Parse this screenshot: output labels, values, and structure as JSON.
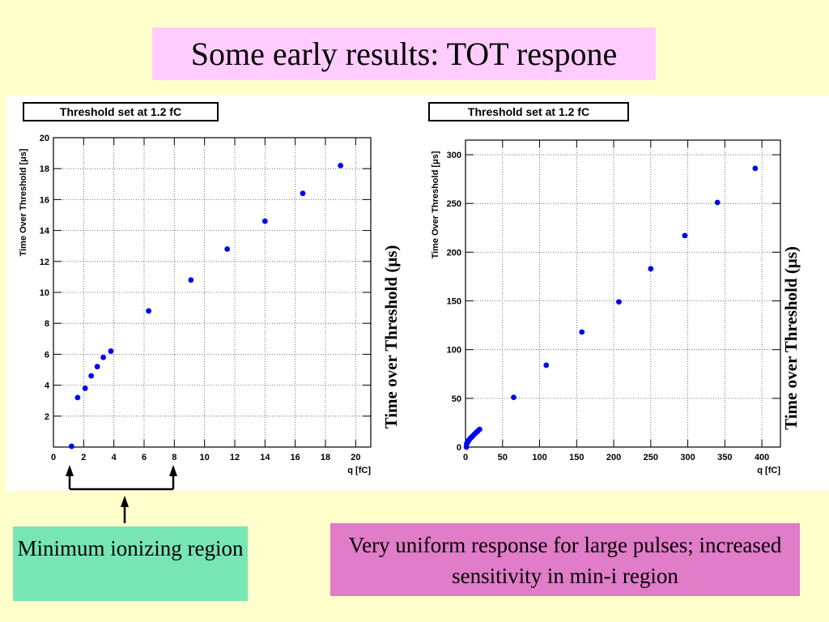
{
  "slide": {
    "title": "Some early results: TOT respone",
    "caption_left": "Minimum ionizing region",
    "caption_right": "Very uniform response for large pulses; increased sensitivity in min-i region",
    "colors": {
      "background": "#ffffcc",
      "title_bg": "#ffccff",
      "caption_left_bg": "#77e6b4",
      "caption_right_bg": "#e07cc8",
      "marker": "#0000ee"
    }
  },
  "chart_data": [
    {
      "type": "scatter",
      "title": "Threshold set at 1.2 fC",
      "xlabel": "q [fC]",
      "ylabel": "Time Over Threshold [μs]",
      "side_label": "Time over Threshold (μs)",
      "xlim": [
        0,
        21
      ],
      "ylim": [
        0,
        20
      ],
      "xticks": [
        0,
        2,
        4,
        6,
        8,
        10,
        12,
        14,
        16,
        18,
        20
      ],
      "yticks": [
        2,
        4,
        6,
        8,
        10,
        12,
        14,
        16,
        18,
        20
      ],
      "grid": true,
      "x": [
        1.2,
        1.6,
        2.1,
        2.5,
        2.9,
        3.3,
        3.8,
        6.3,
        9.1,
        11.5,
        14.0,
        16.5,
        19.0
      ],
      "y": [
        0.05,
        3.2,
        3.8,
        4.6,
        5.2,
        5.8,
        6.2,
        8.8,
        10.8,
        12.8,
        14.6,
        16.4,
        18.2
      ]
    },
    {
      "type": "scatter",
      "title": "Threshold set at 1.2 fC",
      "xlabel": "q [fC]",
      "ylabel": "Time Over Threshold [μs]",
      "side_label": "Time over Threshold (μs)",
      "xlim": [
        0,
        425
      ],
      "ylim": [
        0,
        315
      ],
      "xticks": [
        50,
        100,
        150,
        200,
        250,
        300,
        350,
        400
      ],
      "xtick_zero": "0",
      "yticks": [
        50,
        100,
        150,
        200,
        250,
        300
      ],
      "ytick_zero": "0",
      "grid": true,
      "x": [
        1.2,
        1.6,
        2.1,
        2.5,
        2.9,
        3.3,
        3.8,
        4.5,
        6.3,
        8.0,
        9.1,
        11.5,
        14.0,
        16.5,
        19.0,
        65,
        109,
        157,
        207,
        250,
        296,
        340,
        391
      ],
      "y": [
        0.05,
        3.2,
        3.8,
        4.6,
        5.2,
        5.8,
        6.2,
        7.0,
        8.8,
        10.0,
        10.8,
        12.8,
        14.6,
        16.4,
        18.2,
        51,
        84,
        118,
        149,
        183,
        217,
        251,
        286
      ]
    }
  ]
}
